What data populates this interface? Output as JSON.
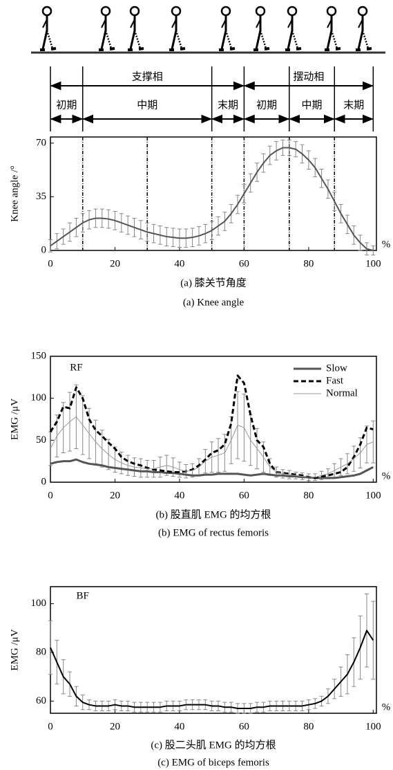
{
  "chart_data": [
    {
      "type": "line",
      "y_label": "Knee angle /°",
      "x_unit": "%",
      "captions": [
        "(a) 膝关节角度",
        "(a) Knee angle"
      ],
      "phase_groups": [
        {
          "label": "支撑相",
          "start": 0,
          "end": 60
        },
        {
          "label": "摆动相",
          "start": 60,
          "end": 100
        }
      ],
      "subphases": [
        {
          "label": "初期",
          "start": 0,
          "end": 10
        },
        {
          "label": "中期",
          "start": 10,
          "end": 50
        },
        {
          "label": "末期",
          "start": 50,
          "end": 60
        },
        {
          "label": "初期",
          "start": 60,
          "end": 74
        },
        {
          "label": "中期",
          "start": 74,
          "end": 88
        },
        {
          "label": "末期",
          "start": 88,
          "end": 100
        }
      ],
      "vlines": [
        10,
        30,
        50,
        60,
        74,
        88
      ],
      "x": [
        0,
        2,
        4,
        6,
        8,
        10,
        12,
        14,
        16,
        18,
        20,
        22,
        24,
        26,
        28,
        30,
        32,
        34,
        36,
        38,
        40,
        42,
        44,
        46,
        48,
        50,
        52,
        54,
        56,
        58,
        60,
        62,
        64,
        66,
        68,
        70,
        72,
        74,
        76,
        78,
        80,
        82,
        84,
        86,
        88,
        90,
        92,
        94,
        96,
        98,
        100
      ],
      "series": [
        {
          "color": "#555555",
          "values": [
            3,
            6,
            9,
            12,
            15,
            18,
            20,
            21,
            21,
            20.5,
            19.5,
            18,
            16.5,
            15,
            13.5,
            12,
            11,
            10,
            9,
            8.5,
            8,
            8,
            8.5,
            9.5,
            11,
            13,
            16,
            19,
            24,
            30,
            37,
            44,
            51,
            57,
            62,
            65,
            67,
            67,
            66,
            63,
            59,
            54,
            47,
            40,
            32,
            24,
            17,
            10,
            5,
            1,
            0
          ],
          "errors": [
            4,
            5,
            5,
            6,
            6,
            6,
            6,
            6,
            6,
            6,
            6,
            6,
            6,
            6,
            6,
            6,
            6,
            6,
            6,
            6,
            6,
            6,
            6,
            6,
            6,
            6,
            6,
            6,
            6,
            6,
            6,
            6,
            6,
            6,
            6,
            6,
            5,
            5,
            5,
            6,
            6,
            6,
            6,
            6,
            6,
            6,
            6,
            6,
            5,
            4,
            3
          ]
        }
      ],
      "xlim": [
        0,
        101
      ],
      "ylim": [
        0,
        74
      ],
      "xticks": [
        0,
        20,
        40,
        60,
        80,
        100
      ],
      "yticks": [
        0,
        35,
        70
      ]
    },
    {
      "type": "line",
      "y_label": "EMG /μV",
      "x_unit": "%",
      "captions": [
        "(b) 股直肌  EMG 的均方根",
        "(b) EMG of rectus femoris"
      ],
      "annotations": [
        {
          "text": "RF",
          "x": 8,
          "y": 136
        }
      ],
      "legend": "upper right",
      "x": [
        0,
        2,
        4,
        6,
        8,
        10,
        12,
        14,
        16,
        18,
        20,
        22,
        24,
        26,
        28,
        30,
        32,
        34,
        36,
        38,
        40,
        42,
        44,
        46,
        48,
        50,
        52,
        54,
        56,
        58,
        60,
        62,
        64,
        66,
        68,
        70,
        72,
        74,
        76,
        78,
        80,
        82,
        84,
        86,
        88,
        90,
        92,
        94,
        96,
        98,
        100
      ],
      "series": [
        {
          "name": "Slow",
          "color": "#555555",
          "width": 3,
          "dash": false,
          "values": [
            22,
            24,
            25,
            25,
            27,
            24,
            22,
            21,
            20,
            18,
            17,
            16,
            15,
            14,
            13,
            13,
            12,
            12,
            11,
            11,
            10,
            9,
            8,
            8,
            9,
            9,
            10,
            10,
            10,
            10,
            9,
            8,
            9,
            10,
            9,
            8,
            8,
            7,
            7,
            6,
            6,
            5,
            5,
            5,
            5,
            6,
            7,
            8,
            10,
            14,
            18
          ]
        },
        {
          "name": "Fast",
          "color": "#000000",
          "width": 3,
          "dash": true,
          "values": [
            60,
            72,
            90,
            88,
            113,
            100,
            75,
            62,
            55,
            47,
            40,
            30,
            25,
            22,
            20,
            17,
            15,
            14,
            13,
            12,
            12,
            13,
            15,
            20,
            27,
            35,
            38,
            45,
            70,
            127,
            118,
            80,
            50,
            42,
            22,
            12,
            11,
            10,
            9,
            8,
            6,
            5,
            7,
            8,
            10,
            12,
            18,
            30,
            45,
            65,
            63
          ]
        },
        {
          "name": "Normal",
          "color": "#999999",
          "width": 1,
          "dash": false,
          "values": [
            40,
            55,
            65,
            72,
            78,
            68,
            58,
            48,
            40,
            33,
            27,
            23,
            20,
            18,
            17,
            16,
            16,
            18,
            20,
            18,
            15,
            13,
            14,
            18,
            25,
            30,
            32,
            35,
            50,
            68,
            65,
            50,
            40,
            30,
            18,
            12,
            10,
            9,
            8,
            7,
            6,
            6,
            8,
            10,
            14,
            18,
            22,
            28,
            35,
            45,
            48
          ],
          "errors": [
            20,
            25,
            30,
            35,
            38,
            35,
            30,
            26,
            22,
            18,
            15,
            13,
            12,
            11,
            11,
            10,
            10,
            12,
            12,
            11,
            9,
            8,
            8,
            10,
            14,
            18,
            20,
            22,
            28,
            40,
            40,
            30,
            24,
            18,
            10,
            6,
            5,
            5,
            4,
            4,
            4,
            4,
            5,
            6,
            8,
            10,
            12,
            15,
            18,
            22,
            25
          ]
        }
      ],
      "xlim": [
        0,
        101
      ],
      "ylim": [
        0,
        150
      ],
      "xticks": [
        0,
        20,
        40,
        60,
        80,
        100
      ],
      "yticks": [
        0,
        50,
        100,
        150
      ]
    },
    {
      "type": "line",
      "y_label": "EMG /μV",
      "x_unit": "%",
      "captions": [
        "(c) 股二头肌  EMG 的均方根",
        "(c) EMG of biceps femoris"
      ],
      "annotations": [
        {
          "text": "BF",
          "x": 10,
          "y": 103
        }
      ],
      "x": [
        0,
        2,
        4,
        6,
        8,
        10,
        12,
        14,
        16,
        18,
        20,
        22,
        24,
        26,
        28,
        30,
        32,
        34,
        36,
        38,
        40,
        42,
        44,
        46,
        48,
        50,
        52,
        54,
        56,
        58,
        60,
        62,
        64,
        66,
        68,
        70,
        72,
        74,
        76,
        78,
        80,
        82,
        84,
        86,
        88,
        90,
        92,
        94,
        96,
        98,
        100
      ],
      "series": [
        {
          "color": "#000000",
          "values": [
            82,
            76,
            70,
            67,
            62,
            59.5,
            58.5,
            58,
            58,
            58,
            58.5,
            58,
            58,
            57.5,
            57.5,
            57.5,
            57.5,
            57.5,
            58,
            58,
            58,
            58.5,
            58.5,
            58.5,
            58.5,
            58,
            58,
            57.5,
            57.5,
            57,
            57,
            57,
            57.5,
            57.5,
            58,
            58,
            58,
            58,
            58,
            58,
            58.5,
            59,
            60,
            62,
            65,
            68,
            71,
            76,
            82,
            89,
            85
          ],
          "errors": [
            11,
            9,
            7,
            5,
            4,
            3,
            2,
            2,
            2,
            2,
            2,
            2,
            2,
            2,
            2,
            2,
            2,
            2,
            2,
            2,
            2,
            2,
            2,
            2,
            2,
            2,
            2,
            2,
            2,
            2,
            2,
            2,
            2,
            2,
            2,
            2,
            2,
            2,
            2,
            2,
            2,
            2,
            2,
            3,
            4,
            6,
            8,
            10,
            13,
            15,
            16
          ]
        }
      ],
      "xlim": [
        0,
        101
      ],
      "ylim": [
        55,
        107
      ],
      "xticks": [
        0,
        20,
        40,
        60,
        80,
        100
      ],
      "yticks": [
        60,
        80,
        100
      ]
    }
  ]
}
